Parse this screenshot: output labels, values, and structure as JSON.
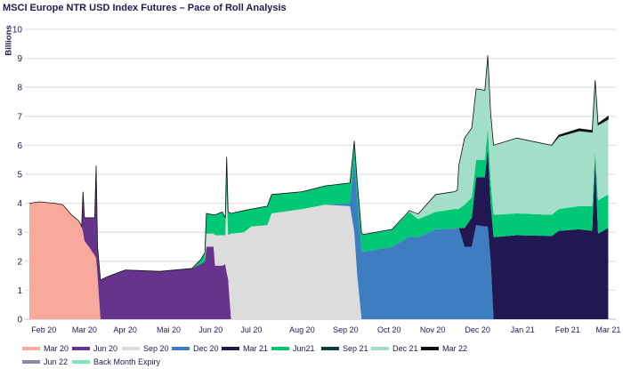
{
  "chart_data": {
    "type": "area",
    "stacked": true,
    "title": "MSCI Europe NTR USD Index Futures – Pace of Roll Analysis",
    "xlabel": "",
    "ylabel": "Billions",
    "ylim": [
      0,
      10
    ],
    "yticks": [
      0,
      1,
      2,
      3,
      4,
      5,
      6,
      7,
      8,
      9,
      10
    ],
    "xlim": [
      0,
      400
    ],
    "xticks": [
      {
        "x": 10,
        "label": "Feb 20"
      },
      {
        "x": 38,
        "label": "Mar 20"
      },
      {
        "x": 66,
        "label": "Apr 20"
      },
      {
        "x": 96,
        "label": "Mai 20"
      },
      {
        "x": 125,
        "label": "Jun 20"
      },
      {
        "x": 153,
        "label": "Jul 20"
      },
      {
        "x": 188,
        "label": "Aug 20"
      },
      {
        "x": 218,
        "label": "Sep 20"
      },
      {
        "x": 248,
        "label": "Oct 20"
      },
      {
        "x": 278,
        "label": "Nov 20"
      },
      {
        "x": 309,
        "label": "Dec 20"
      },
      {
        "x": 340,
        "label": "Jan 21"
      },
      {
        "x": 371,
        "label": "Feb 21"
      },
      {
        "x": 399,
        "label": "Mar 21"
      }
    ],
    "grid": true,
    "legend_position": "bottom",
    "legend": [
      {
        "name": "Mar 20",
        "color": "#F9A99C"
      },
      {
        "name": "Jun 20",
        "color": "#66348C"
      },
      {
        "name": "Sep 20",
        "color": "#DCDCDC"
      },
      {
        "name": "Dec 20",
        "color": "#3D7DC0"
      },
      {
        "name": "Mar 21",
        "color": "#211852"
      },
      {
        "name": "Jun21",
        "color": "#00C875"
      },
      {
        "name": "Sep 21",
        "color": "#0D3F3F"
      },
      {
        "name": "Dec 21",
        "color": "#A3DEC8"
      },
      {
        "name": "Mar 22",
        "color": "#111111"
      },
      {
        "name": "Jun 22",
        "color": "#8A8AA6"
      },
      {
        "name": "Back Month Expiry",
        "color": "#7DE8B8"
      }
    ],
    "stack_order": [
      "Mar 20",
      "Jun 20",
      "Sep 20",
      "Dec 20",
      "Mar 21",
      "Jun21",
      "Dec 21",
      "Mar 22"
    ],
    "x": [
      0,
      7,
      17,
      23,
      29,
      34,
      36,
      37,
      38,
      41,
      45,
      46,
      47,
      49,
      53,
      66,
      90,
      112,
      118,
      121,
      122,
      127,
      128,
      133,
      135,
      136,
      137,
      139,
      148,
      153,
      164,
      167,
      188,
      204,
      221,
      224,
      226,
      229,
      231,
      250,
      262,
      268,
      280,
      293,
      295,
      296,
      300,
      305,
      308,
      314,
      316,
      318,
      320,
      336,
      360,
      365,
      379,
      388,
      390,
      392,
      399
    ],
    "series": [
      {
        "name": "Mar 20",
        "values": [
          4.0,
          4.05,
          4.0,
          3.95,
          3.6,
          3.4,
          3.2,
          3.0,
          2.7,
          2.5,
          2.2,
          2.1,
          1.5,
          0,
          0,
          0,
          0,
          0,
          0,
          0,
          0,
          0,
          0,
          0,
          0,
          0,
          0,
          0,
          0,
          0,
          0,
          0,
          0,
          0,
          0,
          0,
          0,
          0,
          0,
          0,
          0,
          0,
          0,
          0,
          0,
          0,
          0,
          0,
          0,
          0,
          0,
          0,
          0,
          0,
          0,
          0,
          0,
          0,
          0,
          0,
          0
        ]
      },
      {
        "name": "Jun 20",
        "values": [
          0,
          0,
          0,
          0,
          0,
          0,
          0,
          1.4,
          0.8,
          1.0,
          1.3,
          3.2,
          1.0,
          1.35,
          1.45,
          1.7,
          1.65,
          1.75,
          1.9,
          2.0,
          2.5,
          2.5,
          1.85,
          1.85,
          1.9,
          1.6,
          1.4,
          0,
          0,
          0,
          0,
          0,
          0,
          0,
          0,
          0,
          0,
          0,
          0,
          0,
          0,
          0,
          0,
          0,
          0,
          0,
          0,
          0,
          0,
          0,
          0,
          0,
          0,
          0,
          0,
          0,
          0,
          0,
          0,
          0,
          0
        ]
      },
      {
        "name": "Sep 20",
        "values": [
          0,
          0,
          0,
          0,
          0,
          0,
          0,
          0,
          0,
          0,
          0,
          0,
          0,
          0,
          0,
          0,
          0,
          0,
          0,
          0,
          0.45,
          0.45,
          1.05,
          1.05,
          1.0,
          2.8,
          1.5,
          2.95,
          3.0,
          3.2,
          3.25,
          3.65,
          3.8,
          3.95,
          3.9,
          3.0,
          1.5,
          0,
          0,
          0,
          0,
          0,
          0,
          0,
          0,
          0,
          0,
          0,
          0,
          0,
          0,
          0,
          0,
          0,
          0,
          0,
          0,
          0,
          0,
          0,
          0
        ]
      },
      {
        "name": "Dec 20",
        "values": [
          0,
          0,
          0,
          0,
          0,
          0,
          0,
          0,
          0,
          0,
          0,
          0,
          0,
          0,
          0,
          0,
          0,
          0,
          0,
          0,
          0,
          0,
          0,
          0,
          0,
          0,
          0,
          0,
          0,
          0,
          0,
          0,
          0,
          0,
          0.1,
          2.5,
          2.6,
          2.35,
          2.33,
          2.5,
          2.85,
          2.83,
          3.1,
          3.13,
          3.15,
          3.15,
          2.5,
          2.5,
          3.25,
          3.2,
          3.2,
          2.0,
          0,
          0,
          0,
          0,
          0,
          0,
          0,
          0,
          0
        ]
      },
      {
        "name": "Mar 21",
        "values": [
          0,
          0,
          0,
          0,
          0,
          0,
          0,
          0,
          0,
          0,
          0,
          0,
          0,
          0,
          0,
          0,
          0,
          0,
          0,
          0,
          0,
          0,
          0,
          0,
          0,
          0,
          0,
          0,
          0,
          0,
          0,
          0,
          0,
          0,
          0,
          0,
          0,
          0,
          0,
          0,
          0,
          0,
          0,
          0,
          0,
          0,
          0.65,
          1.0,
          1.65,
          1.7,
          2.7,
          2.0,
          2.83,
          2.9,
          2.87,
          3.05,
          3.1,
          3.05,
          5.5,
          2.95,
          3.15
        ]
      },
      {
        "name": "Jun21",
        "values": [
          0,
          0,
          0,
          0,
          0,
          0,
          0,
          0,
          0,
          0,
          0,
          0,
          0,
          0,
          0,
          0,
          0,
          0,
          0.15,
          0.3,
          0.7,
          0.65,
          0.7,
          0.8,
          0.6,
          1.2,
          0.8,
          0.7,
          0.75,
          0.6,
          0.65,
          0.65,
          0.6,
          0.65,
          0.7,
          0.65,
          0.65,
          0.6,
          0.6,
          0.6,
          0.85,
          0.62,
          0.6,
          0.67,
          0.65,
          0.65,
          0.8,
          0.7,
          0.6,
          0.6,
          0.7,
          0.8,
          0.77,
          0.75,
          0.73,
          0.75,
          0.8,
          0.85,
          0.3,
          1.15,
          1.15
        ]
      },
      {
        "name": "Dec 21",
        "values": [
          0,
          0,
          0,
          0,
          0,
          0,
          0,
          0,
          0,
          0,
          0,
          0,
          0,
          0,
          0,
          0,
          0,
          0,
          0,
          0,
          0,
          0,
          0,
          0,
          0,
          0,
          0,
          0,
          0,
          0,
          0,
          0,
          0,
          0,
          0,
          0,
          0,
          0,
          0,
          0,
          0.05,
          0.18,
          0.6,
          0.6,
          0.65,
          1.5,
          2.3,
          2.4,
          2.45,
          2.4,
          2.5,
          2.3,
          2.4,
          2.6,
          2.4,
          2.5,
          2.6,
          2.55,
          2.45,
          2.6,
          2.6
        ]
      },
      {
        "name": "Mar 22",
        "values": [
          0,
          0,
          0,
          0,
          0,
          0,
          0,
          0,
          0,
          0,
          0,
          0,
          0,
          0,
          0,
          0,
          0,
          0,
          0,
          0,
          0,
          0,
          0,
          0,
          0,
          0,
          0,
          0,
          0,
          0,
          0,
          0,
          0,
          0,
          0,
          0,
          0,
          0,
          0,
          0,
          0,
          0,
          0,
          0,
          0,
          0,
          0,
          0,
          0,
          0,
          0,
          0,
          0,
          0,
          0,
          0.05,
          0.07,
          0.06,
          0,
          0.05,
          0.1
        ]
      }
    ]
  }
}
